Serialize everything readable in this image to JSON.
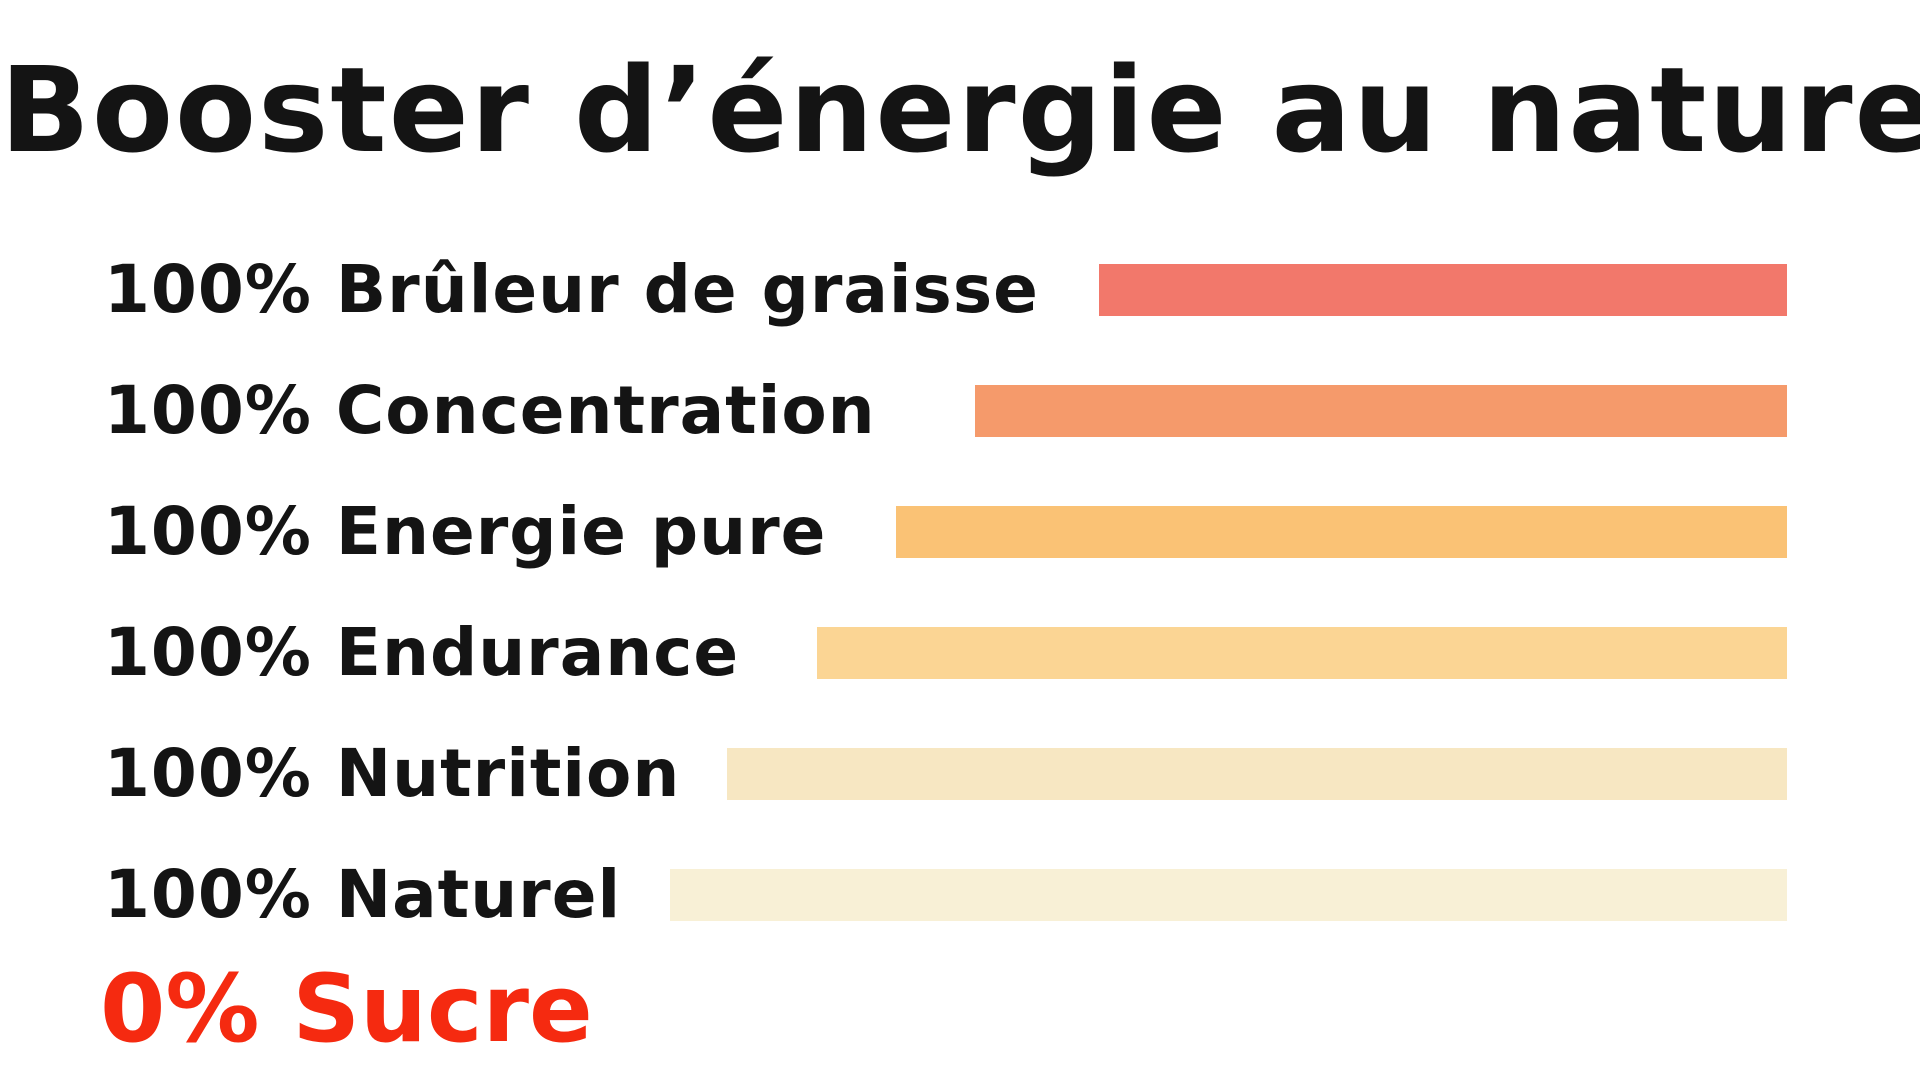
{
  "title": "Booster d’énergie au naturel",
  "rows": [
    {
      "label": "100% Brûleur de graisse",
      "color": "#f2786b",
      "level": 0.61
    },
    {
      "label": "100% Concentration",
      "color": "#f59a6b",
      "level": 0.72
    },
    {
      "label": "100% Energie pure",
      "color": "#fac275",
      "level": 0.79
    },
    {
      "label": "100% Endurance",
      "color": "#fbd594",
      "level": 0.86
    },
    {
      "label": "100% Nutrition",
      "color": "#f7e7c2",
      "level": 0.94
    },
    {
      "label": "100% Naturel",
      "color": "#f8f0d6",
      "level": 0.99
    }
  ],
  "footer": {
    "label": "0% Sucre",
    "color": "#f52a10"
  }
}
